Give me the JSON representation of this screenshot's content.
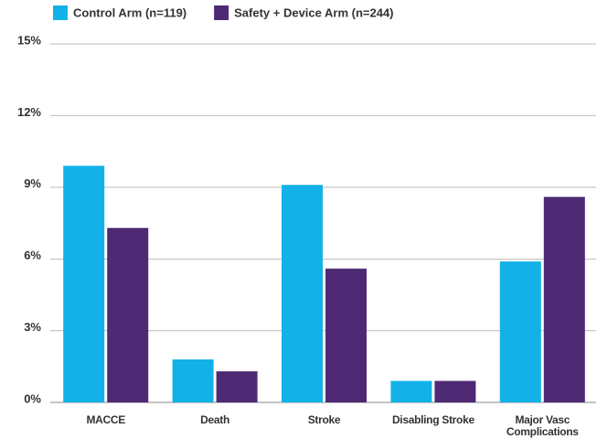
{
  "chart_data": {
    "type": "bar",
    "categories": [
      "MACCE",
      "Death",
      "Stroke",
      "Disabling Stroke",
      "Major Vasc Complications"
    ],
    "series": [
      {
        "name": "Control Arm (n=119)",
        "color": "#12b2e8",
        "values": [
          9.9,
          1.8,
          9.1,
          0.9,
          5.9
        ]
      },
      {
        "name": "Safety + Device Arm (n=244)",
        "color": "#4e2a74",
        "values": [
          7.3,
          1.3,
          5.6,
          0.9,
          8.6
        ]
      }
    ],
    "ylim": [
      0,
      15
    ],
    "yticks": [
      {
        "value": 0,
        "label": "0%"
      },
      {
        "value": 3,
        "label": "3%"
      },
      {
        "value": 6,
        "label": "6%"
      },
      {
        "value": 9,
        "label": "9%"
      },
      {
        "value": 12,
        "label": "12%"
      },
      {
        "value": 15,
        "label": "15%"
      }
    ],
    "grid": true,
    "legend": "top"
  }
}
